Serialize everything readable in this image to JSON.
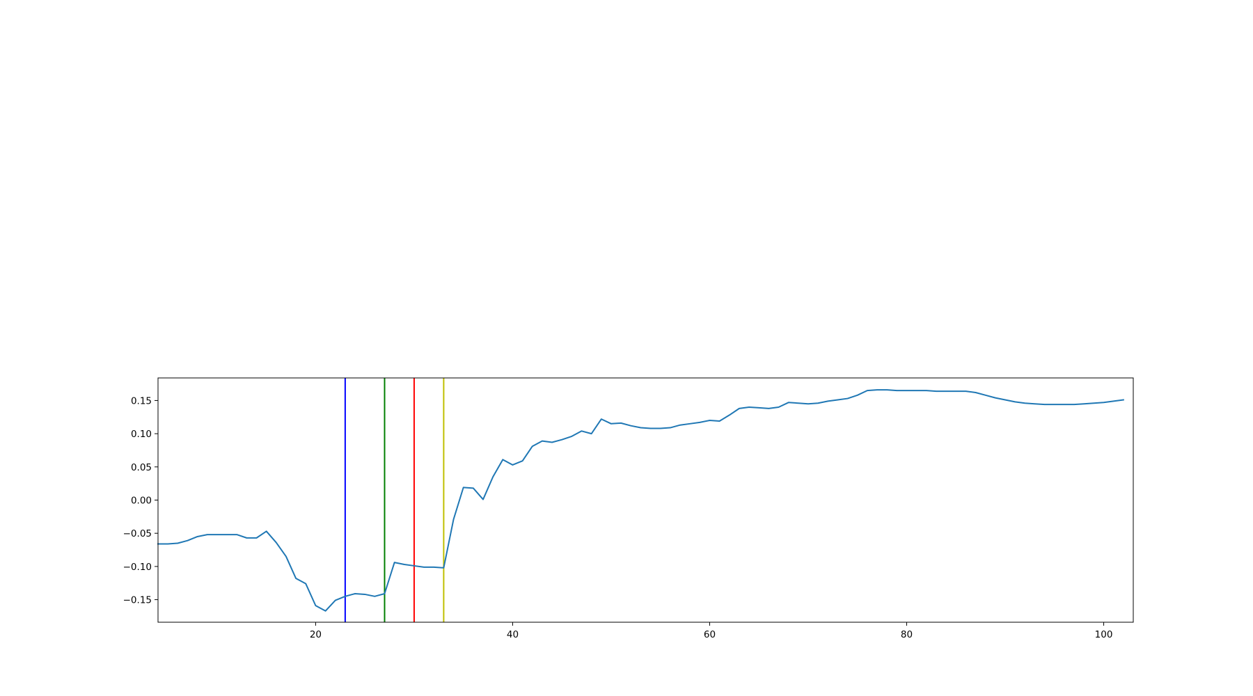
{
  "chart_data": {
    "type": "line",
    "title": "",
    "xlabel": "",
    "ylabel": "",
    "xlim": [
      4,
      103
    ],
    "ylim": [
      -0.184,
      0.184
    ],
    "grid": false,
    "legend": "none",
    "x_ticks": [
      {
        "value": 20,
        "label": "20"
      },
      {
        "value": 40,
        "label": "40"
      },
      {
        "value": 60,
        "label": "60"
      },
      {
        "value": 80,
        "label": "80"
      },
      {
        "value": 100,
        "label": "100"
      }
    ],
    "y_ticks": [
      {
        "value": 0.15,
        "label": "0.15"
      },
      {
        "value": 0.1,
        "label": "0.10"
      },
      {
        "value": 0.05,
        "label": "0.05"
      },
      {
        "value": 0.0,
        "label": "0.00"
      },
      {
        "value": -0.05,
        "label": "−0.05"
      },
      {
        "value": -0.1,
        "label": "−0.10"
      },
      {
        "value": -0.15,
        "label": "−0.15"
      }
    ],
    "series": [
      {
        "color": "#1f77b4",
        "x": [
          4,
          5,
          6,
          7,
          8,
          9,
          10,
          11,
          12,
          13,
          14,
          15,
          16,
          17,
          18,
          19,
          20,
          21,
          22,
          23,
          24,
          25,
          26,
          27,
          28,
          29,
          30,
          31,
          32,
          33,
          34,
          35,
          36,
          37,
          38,
          39,
          40,
          41,
          42,
          43,
          44,
          45,
          46,
          47,
          48,
          49,
          50,
          51,
          52,
          53,
          54,
          55,
          56,
          57,
          58,
          59,
          60,
          61,
          62,
          63,
          64,
          65,
          66,
          67,
          68,
          69,
          70,
          71,
          72,
          73,
          74,
          75,
          76,
          77,
          78,
          79,
          80,
          81,
          82,
          83,
          84,
          85,
          86,
          87,
          88,
          89,
          90,
          91,
          92,
          93,
          94,
          95,
          96,
          97,
          98,
          99,
          100,
          101,
          102
        ],
        "y": [
          -0.066,
          -0.066,
          -0.065,
          -0.061,
          -0.055,
          -0.052,
          -0.052,
          -0.052,
          -0.052,
          -0.057,
          -0.057,
          -0.047,
          -0.064,
          -0.085,
          -0.118,
          -0.126,
          -0.159,
          -0.167,
          -0.151,
          -0.145,
          -0.141,
          -0.142,
          -0.145,
          -0.141,
          -0.094,
          -0.097,
          -0.099,
          -0.101,
          -0.101,
          -0.102,
          -0.029,
          0.019,
          0.018,
          0.001,
          0.035,
          0.061,
          0.053,
          0.059,
          0.081,
          0.089,
          0.087,
          0.091,
          0.096,
          0.104,
          0.1,
          0.122,
          0.115,
          0.116,
          0.112,
          0.109,
          0.108,
          0.108,
          0.109,
          0.113,
          0.115,
          0.117,
          0.12,
          0.119,
          0.128,
          0.138,
          0.14,
          0.139,
          0.138,
          0.14,
          0.147,
          0.146,
          0.145,
          0.146,
          0.149,
          0.151,
          0.153,
          0.158,
          0.165,
          0.166,
          0.166,
          0.165,
          0.165,
          0.165,
          0.165,
          0.164,
          0.164,
          0.164,
          0.164,
          0.162,
          0.158,
          0.154,
          0.151,
          0.148,
          0.146,
          0.145,
          0.144,
          0.144,
          0.144,
          0.144,
          0.145,
          0.146,
          0.147,
          0.149,
          0.151
        ]
      }
    ],
    "vlines": [
      {
        "x": 23,
        "color": "#0000ff"
      },
      {
        "x": 27,
        "color": "#007f00"
      },
      {
        "x": 30,
        "color": "#ff0000"
      },
      {
        "x": 33,
        "color": "#bfbf00"
      }
    ]
  }
}
